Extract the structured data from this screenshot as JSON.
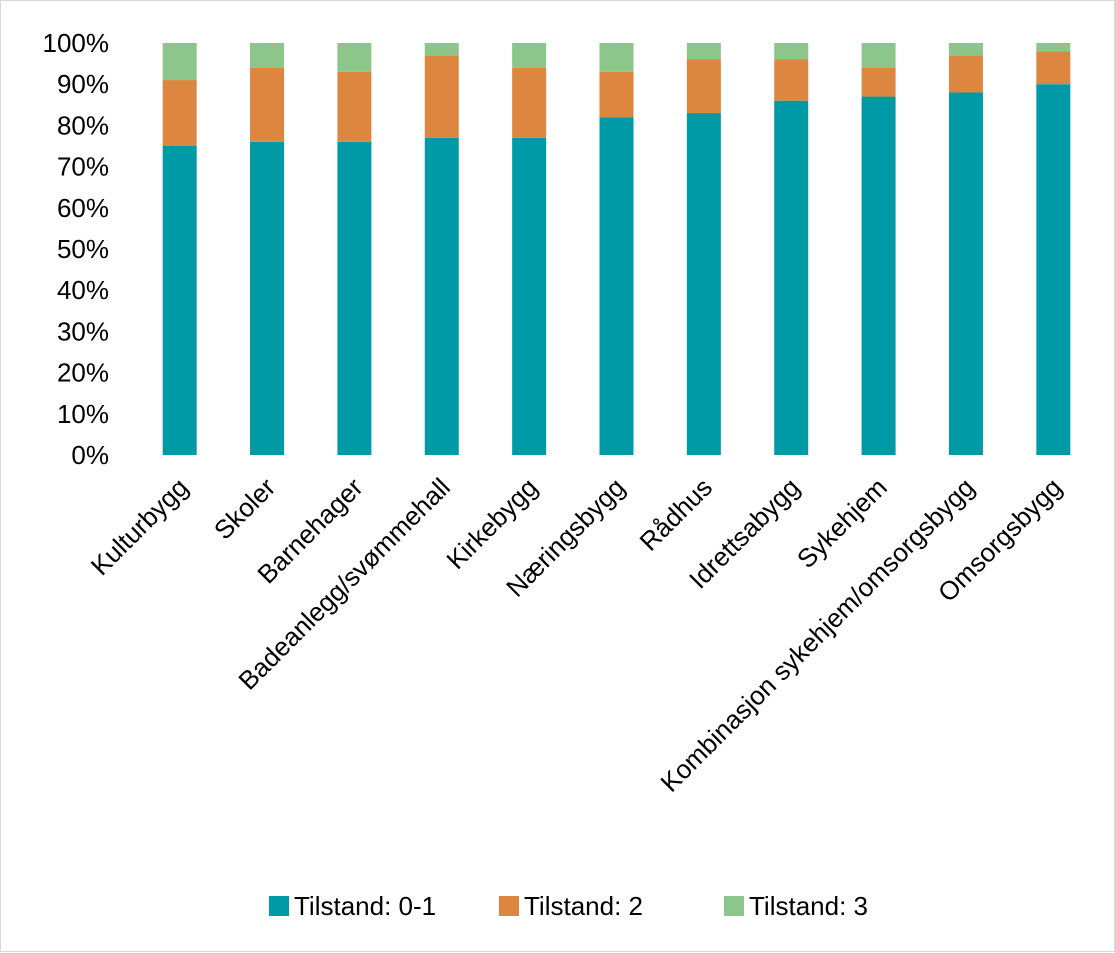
{
  "chart_data": {
    "type": "bar",
    "stacked": true,
    "categories": [
      "Kulturbygg",
      "Skoler",
      "Barnehager",
      "Badeanlegg/svømmehall",
      "Kirkebygg",
      "Næringsbygg",
      "Rådhus",
      "Idrettsabygg",
      "Sykehjem",
      "Kombinasjon sykehjem/omsorgsbygg",
      "Omsorgsbygg"
    ],
    "series": [
      {
        "name": "Tilstand: 0-1",
        "color": "#009aa6",
        "values": [
          75,
          76,
          76,
          77,
          77,
          82,
          83,
          86,
          87,
          88,
          90
        ]
      },
      {
        "name": "Tilstand: 2",
        "color": "#dd863f",
        "values": [
          16,
          18,
          17,
          20,
          17,
          11,
          13,
          10,
          7,
          9,
          8
        ]
      },
      {
        "name": "Tilstand: 3",
        "color": "#8cc68a",
        "values": [
          9,
          6,
          7,
          3,
          6,
          7,
          4,
          4,
          6,
          3,
          2
        ]
      }
    ],
    "yticks": [
      "0%",
      "10%",
      "20%",
      "30%",
      "40%",
      "50%",
      "60%",
      "70%",
      "80%",
      "90%",
      "100%"
    ],
    "ylim": [
      0,
      100
    ],
    "grid": false,
    "legend_position": "bottom"
  }
}
